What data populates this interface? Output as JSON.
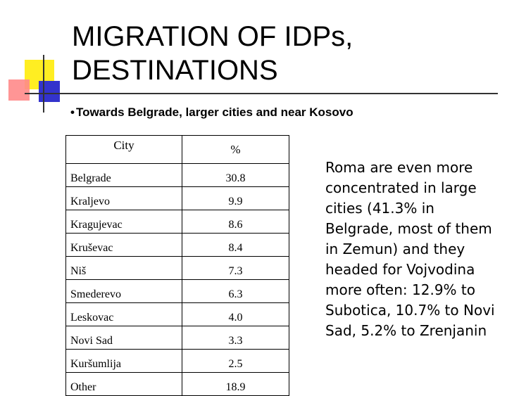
{
  "title_line1": "MIGRATION OF IDPs,",
  "title_line2": "DESTINATIONS",
  "bullet": "Towards Belgrade, larger cities and near Kosovo",
  "table": {
    "headers": [
      "City",
      "%"
    ],
    "rows": [
      {
        "city": "Belgrade",
        "pct": "30.8"
      },
      {
        "city": "Kraljevo",
        "pct": "9.9"
      },
      {
        "city": "Kragujevac",
        "pct": "8.6"
      },
      {
        "city": "Kruševac",
        "pct": "8.4"
      },
      {
        "city": "Niš",
        "pct": "7.3"
      },
      {
        "city": "Smederevo",
        "pct": "6.3"
      },
      {
        "city": "Leskovac",
        "pct": "4.0"
      },
      {
        "city": "Novi Sad",
        "pct": "3.3"
      },
      {
        "city": "Kuršumlija",
        "pct": "2.5"
      },
      {
        "city": "Other",
        "pct": "18.9"
      }
    ]
  },
  "side_text": "Roma are even more concentrated in large cities (41.3% in Belgrade, most of them in Zemun) and they headed for Vojvodina more often: 12.9% to Subotica, 10.7% to Novi Sad, 5.2% to Zrenjanin",
  "colors": {
    "yellow": "#ffee22",
    "red": "#ff8a8a",
    "blue": "#3333cc"
  }
}
